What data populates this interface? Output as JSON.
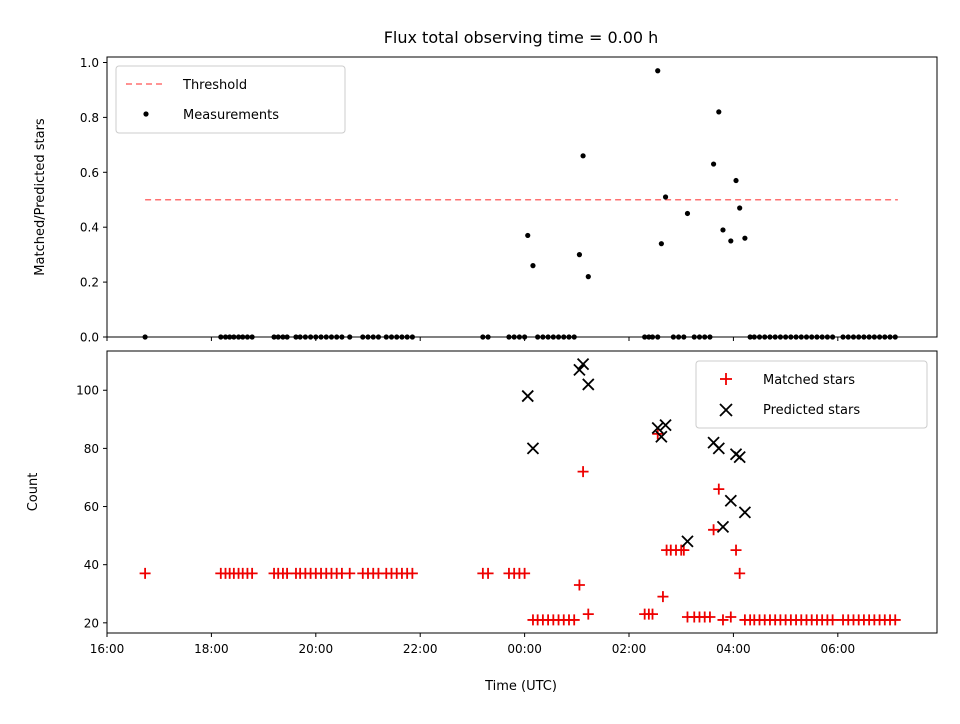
{
  "chart_data": {
    "type": "scatter",
    "title": "Flux total observing time = 0.00 h",
    "xlabel": "Time (UTC)",
    "x_unit": "hours relative to 00:00 UTC",
    "xlim": [
      -8.0,
      7.9
    ],
    "x_ticks": [
      -8,
      -6,
      -4,
      -2,
      0,
      2,
      4,
      6
    ],
    "x_tick_labels": [
      "16:00",
      "18:00",
      "20:00",
      "22:00",
      "00:00",
      "02:00",
      "04:00",
      "06:00"
    ],
    "panels": [
      {
        "ylabel": "Matched/Predicted stars",
        "ylim": [
          0,
          1.02
        ],
        "y_ticks": [
          0.0,
          0.2,
          0.4,
          0.6,
          0.8,
          1.0
        ],
        "y_tick_labels": [
          "0.0",
          "0.2",
          "0.4",
          "0.6",
          "0.8",
          "1.0"
        ],
        "legend_position": "top-left",
        "threshold": {
          "name": "Threshold",
          "value": 0.5,
          "x_range": [
            -7.27,
            7.15
          ],
          "color": "#ff7070"
        },
        "series": [
          {
            "name": "Measurements",
            "color": "#000000",
            "marker": "dot",
            "points": [
              [
                -7.27,
                0
              ],
              [
                -5.82,
                0
              ],
              [
                -5.73,
                0
              ],
              [
                -5.65,
                0
              ],
              [
                -5.57,
                0
              ],
              [
                -5.48,
                0
              ],
              [
                -5.4,
                0
              ],
              [
                -5.31,
                0
              ],
              [
                -5.22,
                0
              ],
              [
                -4.8,
                0
              ],
              [
                -4.72,
                0
              ],
              [
                -4.63,
                0
              ],
              [
                -4.55,
                0
              ],
              [
                -4.38,
                0
              ],
              [
                -4.3,
                0
              ],
              [
                -4.2,
                0
              ],
              [
                -4.1,
                0
              ],
              [
                -4.0,
                0
              ],
              [
                -3.9,
                0
              ],
              [
                -3.8,
                0
              ],
              [
                -3.7,
                0
              ],
              [
                -3.6,
                0
              ],
              [
                -3.5,
                0
              ],
              [
                -3.35,
                0
              ],
              [
                -3.1,
                0
              ],
              [
                -3.0,
                0
              ],
              [
                -2.9,
                0
              ],
              [
                -2.8,
                0
              ],
              [
                -2.65,
                0
              ],
              [
                -2.55,
                0
              ],
              [
                -2.45,
                0
              ],
              [
                -2.35,
                0
              ],
              [
                -2.25,
                0
              ],
              [
                -2.15,
                0
              ],
              [
                -0.8,
                0
              ],
              [
                -0.7,
                0
              ],
              [
                -0.3,
                0
              ],
              [
                -0.2,
                0
              ],
              [
                -0.1,
                0
              ],
              [
                0.0,
                0
              ],
              [
                0.06,
                0.37
              ],
              [
                0.16,
                0.26
              ],
              [
                0.25,
                0
              ],
              [
                0.35,
                0
              ],
              [
                0.45,
                0
              ],
              [
                0.55,
                0
              ],
              [
                0.65,
                0
              ],
              [
                0.75,
                0
              ],
              [
                0.85,
                0
              ],
              [
                0.95,
                0
              ],
              [
                1.05,
                0.3
              ],
              [
                1.12,
                0.66
              ],
              [
                1.22,
                0.22
              ],
              [
                2.3,
                0
              ],
              [
                2.38,
                0
              ],
              [
                2.45,
                0
              ],
              [
                2.55,
                0
              ],
              [
                2.55,
                0.97
              ],
              [
                2.62,
                0.34
              ],
              [
                2.7,
                0.51
              ],
              [
                2.85,
                0
              ],
              [
                2.95,
                0
              ],
              [
                3.05,
                0
              ],
              [
                3.12,
                0.45
              ],
              [
                3.25,
                0
              ],
              [
                3.35,
                0
              ],
              [
                3.45,
                0
              ],
              [
                3.55,
                0
              ],
              [
                3.62,
                0.63
              ],
              [
                3.72,
                0.82
              ],
              [
                3.8,
                0.39
              ],
              [
                3.95,
                0.35
              ],
              [
                4.05,
                0.57
              ],
              [
                4.12,
                0.47
              ],
              [
                4.22,
                0.36
              ],
              [
                4.32,
                0
              ],
              [
                4.4,
                0
              ],
              [
                4.5,
                0
              ],
              [
                4.6,
                0
              ],
              [
                4.7,
                0
              ],
              [
                4.8,
                0
              ],
              [
                4.9,
                0
              ],
              [
                5.0,
                0
              ],
              [
                5.1,
                0
              ],
              [
                5.2,
                0
              ],
              [
                5.3,
                0
              ],
              [
                5.4,
                0
              ],
              [
                5.5,
                0
              ],
              [
                5.6,
                0
              ],
              [
                5.7,
                0
              ],
              [
                5.8,
                0
              ],
              [
                5.9,
                0
              ],
              [
                6.1,
                0
              ],
              [
                6.2,
                0
              ],
              [
                6.3,
                0
              ],
              [
                6.4,
                0
              ],
              [
                6.5,
                0
              ],
              [
                6.6,
                0
              ],
              [
                6.7,
                0
              ],
              [
                6.8,
                0
              ],
              [
                6.9,
                0
              ],
              [
                7.0,
                0
              ],
              [
                7.1,
                0
              ]
            ]
          }
        ]
      },
      {
        "ylabel": "Count",
        "ylim": [
          16.5,
          113.5
        ],
        "y_ticks": [
          20,
          40,
          60,
          80,
          100
        ],
        "y_tick_labels": [
          "20",
          "40",
          "60",
          "80",
          "100"
        ],
        "legend_position": "top-right",
        "series": [
          {
            "name": "Matched stars",
            "color": "#ee0000",
            "marker": "plus",
            "points": [
              [
                -7.27,
                37
              ],
              [
                -5.82,
                37
              ],
              [
                -5.73,
                37
              ],
              [
                -5.65,
                37
              ],
              [
                -5.57,
                37
              ],
              [
                -5.48,
                37
              ],
              [
                -5.4,
                37
              ],
              [
                -5.31,
                37
              ],
              [
                -5.22,
                37
              ],
              [
                -4.8,
                37
              ],
              [
                -4.72,
                37
              ],
              [
                -4.63,
                37
              ],
              [
                -4.55,
                37
              ],
              [
                -4.38,
                37
              ],
              [
                -4.3,
                37
              ],
              [
                -4.2,
                37
              ],
              [
                -4.1,
                37
              ],
              [
                -4.0,
                37
              ],
              [
                -3.9,
                37
              ],
              [
                -3.8,
                37
              ],
              [
                -3.7,
                37
              ],
              [
                -3.6,
                37
              ],
              [
                -3.5,
                37
              ],
              [
                -3.35,
                37
              ],
              [
                -3.1,
                37
              ],
              [
                -3.0,
                37
              ],
              [
                -2.9,
                37
              ],
              [
                -2.8,
                37
              ],
              [
                -2.65,
                37
              ],
              [
                -2.55,
                37
              ],
              [
                -2.45,
                37
              ],
              [
                -2.35,
                37
              ],
              [
                -2.25,
                37
              ],
              [
                -2.15,
                37
              ],
              [
                -0.8,
                37
              ],
              [
                -0.7,
                37
              ],
              [
                -0.3,
                37
              ],
              [
                -0.2,
                37
              ],
              [
                -0.1,
                37
              ],
              [
                0.0,
                37
              ],
              [
                0.16,
                21
              ],
              [
                0.25,
                21
              ],
              [
                0.35,
                21
              ],
              [
                0.45,
                21
              ],
              [
                0.55,
                21
              ],
              [
                0.65,
                21
              ],
              [
                0.75,
                21
              ],
              [
                0.85,
                21
              ],
              [
                0.95,
                21
              ],
              [
                1.05,
                33
              ],
              [
                1.12,
                72
              ],
              [
                1.22,
                23
              ],
              [
                2.3,
                23
              ],
              [
                2.38,
                23
              ],
              [
                2.45,
                23
              ],
              [
                2.55,
                85
              ],
              [
                2.65,
                29
              ],
              [
                2.72,
                45
              ],
              [
                2.8,
                45
              ],
              [
                2.9,
                45
              ],
              [
                3.0,
                45
              ],
              [
                3.05,
                45
              ],
              [
                3.12,
                22
              ],
              [
                3.25,
                22
              ],
              [
                3.35,
                22
              ],
              [
                3.45,
                22
              ],
              [
                3.55,
                22
              ],
              [
                3.62,
                52
              ],
              [
                3.72,
                66
              ],
              [
                3.8,
                21
              ],
              [
                3.95,
                22
              ],
              [
                4.05,
                45
              ],
              [
                4.12,
                37
              ],
              [
                4.22,
                21
              ],
              [
                4.32,
                21
              ],
              [
                4.4,
                21
              ],
              [
                4.5,
                21
              ],
              [
                4.6,
                21
              ],
              [
                4.7,
                21
              ],
              [
                4.8,
                21
              ],
              [
                4.9,
                21
              ],
              [
                5.0,
                21
              ],
              [
                5.1,
                21
              ],
              [
                5.2,
                21
              ],
              [
                5.3,
                21
              ],
              [
                5.4,
                21
              ],
              [
                5.5,
                21
              ],
              [
                5.6,
                21
              ],
              [
                5.7,
                21
              ],
              [
                5.8,
                21
              ],
              [
                5.9,
                21
              ],
              [
                6.1,
                21
              ],
              [
                6.2,
                21
              ],
              [
                6.3,
                21
              ],
              [
                6.4,
                21
              ],
              [
                6.5,
                21
              ],
              [
                6.6,
                21
              ],
              [
                6.7,
                21
              ],
              [
                6.8,
                21
              ],
              [
                6.9,
                21
              ],
              [
                7.0,
                21
              ],
              [
                7.1,
                21
              ]
            ]
          },
          {
            "name": "Predicted stars",
            "color": "#000000",
            "marker": "x",
            "points": [
              [
                0.06,
                98
              ],
              [
                0.16,
                80
              ],
              [
                1.05,
                107
              ],
              [
                1.12,
                109
              ],
              [
                1.22,
                102
              ],
              [
                2.55,
                87
              ],
              [
                2.62,
                84
              ],
              [
                2.7,
                88
              ],
              [
                3.12,
                48
              ],
              [
                3.62,
                82
              ],
              [
                3.72,
                80
              ],
              [
                3.8,
                53
              ],
              [
                3.95,
                62
              ],
              [
                4.05,
                78
              ],
              [
                4.12,
                77
              ],
              [
                4.22,
                58
              ]
            ]
          }
        ]
      }
    ]
  }
}
